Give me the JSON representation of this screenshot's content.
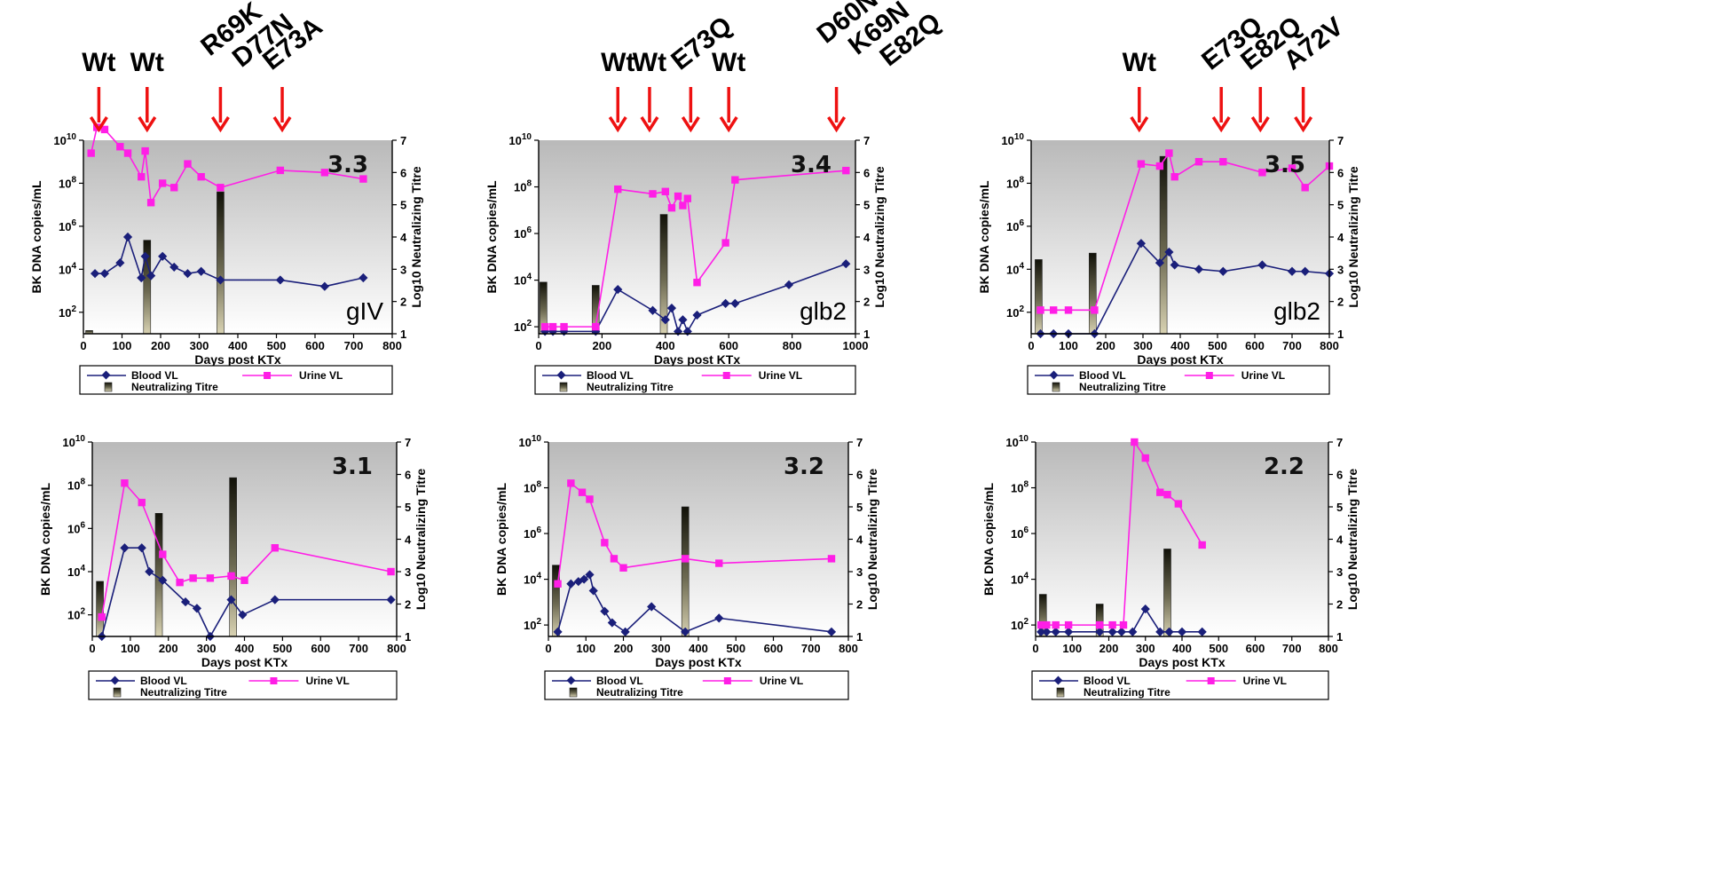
{
  "chart_data": [
    {
      "type": "line",
      "panel_label": "3.3",
      "genotype_label": "gIV",
      "xlabel": "Days post KTx",
      "ylabel": "BK DNA copies/mL",
      "y2label": "Log10 Neutralizing Titre",
      "xlim": [
        0,
        800
      ],
      "x_ticks": [
        0,
        100,
        200,
        300,
        400,
        500,
        600,
        700,
        800
      ],
      "ylim_log10": [
        1,
        10
      ],
      "y_ticks": [
        "10",
        "10",
        "10",
        "10",
        "10"
      ],
      "y_tick_exponents": [
        "2",
        "4",
        "6",
        "8",
        "10"
      ],
      "y2lim": [
        1,
        7
      ],
      "y2_ticks": [
        1,
        2,
        3,
        4,
        5,
        6,
        7
      ],
      "annotations": [
        {
          "day": 40,
          "lines": [
            "Wt"
          ]
        },
        {
          "day": 165,
          "lines": [
            "Wt"
          ]
        },
        {
          "day": 355,
          "lines": [
            "R69K",
            "D77N"
          ]
        },
        {
          "day": 515,
          "lines": [
            "E73A"
          ]
        }
      ],
      "series": [
        {
          "name": "Blood VL",
          "x": [
            30,
            55,
            95,
            115,
            150,
            160,
            175,
            205,
            235,
            270,
            305,
            355,
            510,
            625,
            725
          ],
          "log10_y": [
            3.8,
            3.8,
            4.3,
            5.5,
            3.6,
            4.6,
            3.7,
            4.6,
            4.1,
            3.8,
            3.9,
            3.5,
            3.5,
            3.2,
            3.6
          ]
        },
        {
          "name": "Urine VL",
          "x": [
            20,
            35,
            55,
            95,
            115,
            150,
            160,
            175,
            205,
            235,
            270,
            305,
            355,
            510,
            625,
            725
          ],
          "log10_y": [
            9.4,
            10.6,
            10.5,
            9.7,
            9.4,
            8.3,
            9.5,
            7.1,
            8.0,
            7.8,
            8.9,
            8.3,
            7.8,
            8.6,
            8.5,
            8.2
          ]
        },
        {
          "name": "Neutralizing Titre",
          "type": "bar",
          "x": [
            15,
            165,
            355
          ],
          "log10_titre": [
            1.1,
            3.9,
            5.4
          ]
        }
      ]
    },
    {
      "type": "line",
      "panel_label": "3.4",
      "genotype_label": "glb2",
      "xlabel": "Days post KTx",
      "ylabel": "BK DNA copies/mL",
      "y2label": "Log10 Neutralizing Titre",
      "xlim": [
        0,
        1000
      ],
      "x_ticks": [
        0,
        200,
        400,
        600,
        800,
        1000
      ],
      "ylim_log10": [
        1.7,
        10
      ],
      "y_ticks": [
        "10",
        "10",
        "10",
        "10",
        "10"
      ],
      "y_tick_exponents": [
        "2",
        "4",
        "6",
        "8",
        "10"
      ],
      "y2lim": [
        1,
        7
      ],
      "y2_ticks": [
        1,
        2,
        3,
        4,
        5,
        6,
        7
      ],
      "annotations": [
        {
          "day": 250,
          "lines": [
            "Wt"
          ]
        },
        {
          "day": 350,
          "lines": [
            "Wt"
          ]
        },
        {
          "day": 480,
          "lines": [
            "E73Q"
          ]
        },
        {
          "day": 600,
          "lines": [
            "Wt"
          ]
        },
        {
          "day": 940,
          "lines": [
            "D60N",
            "K69N",
            "E82Q"
          ]
        }
      ],
      "series": [
        {
          "name": "Blood VL",
          "x": [
            20,
            45,
            80,
            180,
            250,
            360,
            400,
            420,
            440,
            455,
            470,
            500,
            590,
            620,
            790,
            970
          ],
          "log10_y": [
            1.8,
            1.8,
            1.8,
            1.8,
            3.6,
            2.7,
            2.3,
            2.8,
            1.8,
            2.3,
            1.8,
            2.5,
            3.0,
            3.0,
            3.8,
            4.7
          ]
        },
        {
          "name": "Urine VL",
          "x": [
            20,
            45,
            80,
            180,
            250,
            360,
            400,
            420,
            440,
            455,
            470,
            500,
            590,
            620,
            970
          ],
          "log10_y": [
            2.0,
            2.0,
            2.0,
            2.0,
            7.9,
            7.7,
            7.8,
            7.1,
            7.6,
            7.2,
            7.5,
            3.9,
            5.6,
            8.3,
            8.7
          ]
        },
        {
          "name": "Neutralizing Titre",
          "type": "bar",
          "x": [
            15,
            180,
            395
          ],
          "log10_titre": [
            2.6,
            2.5,
            4.7
          ]
        }
      ]
    },
    {
      "type": "line",
      "panel_label": "3.5",
      "genotype_label": "glb2",
      "xlabel": "Days post KTx",
      "ylabel": "BK DNA copies/mL",
      "y2label": "Log10 Neutralizing Titre",
      "xlim": [
        0,
        800
      ],
      "x_ticks": [
        0,
        100,
        200,
        300,
        400,
        500,
        600,
        700,
        800
      ],
      "ylim_log10": [
        1,
        10
      ],
      "y_ticks": [
        "10",
        "10",
        "10",
        "10",
        "10"
      ],
      "y_tick_exponents": [
        "2",
        "4",
        "6",
        "8",
        "10"
      ],
      "y2lim": [
        1,
        7
      ],
      "y2_ticks": [
        1,
        2,
        3,
        4,
        5,
        6,
        7
      ],
      "annotations": [
        {
          "day": 290,
          "lines": [
            "Wt"
          ]
        },
        {
          "day": 510,
          "lines": [
            "E73Q"
          ]
        },
        {
          "day": 615,
          "lines": [
            "E82Q"
          ]
        },
        {
          "day": 730,
          "lines": [
            "A72V"
          ]
        }
      ],
      "series": [
        {
          "name": "Blood VL",
          "x": [
            25,
            60,
            100,
            170,
            295,
            345,
            370,
            385,
            450,
            515,
            620,
            700,
            735,
            800
          ],
          "log10_y": [
            1.0,
            1.0,
            1.0,
            1.0,
            5.2,
            4.3,
            4.8,
            4.2,
            4.0,
            3.9,
            4.2,
            3.9,
            3.9,
            3.8
          ]
        },
        {
          "name": "Urine VL",
          "x": [
            25,
            60,
            100,
            170,
            295,
            345,
            370,
            385,
            450,
            515,
            620,
            700,
            735,
            800
          ],
          "log10_y": [
            2.1,
            2.1,
            2.1,
            2.1,
            8.9,
            8.8,
            9.4,
            8.3,
            9.0,
            9.0,
            8.5,
            8.7,
            7.8,
            8.8
          ]
        },
        {
          "name": "Neutralizing Titre",
          "type": "bar",
          "x": [
            20,
            165,
            355
          ],
          "log10_titre": [
            3.3,
            3.5,
            6.5
          ]
        }
      ]
    },
    {
      "type": "line",
      "panel_label": "3.1",
      "genotype_label": "",
      "xlabel": "Days post KTx",
      "ylabel": "BK DNA copies/mL",
      "y2label": "Log10 Neutralizing Titre",
      "xlim": [
        0,
        800
      ],
      "x_ticks": [
        0,
        100,
        200,
        300,
        400,
        500,
        600,
        700,
        800
      ],
      "ylim_log10": [
        1,
        10
      ],
      "y_ticks": [
        "10",
        "10",
        "10",
        "10",
        "10"
      ],
      "y_tick_exponents": [
        "2",
        "4",
        "6",
        "8",
        "10"
      ],
      "y2lim": [
        1,
        7
      ],
      "y2_ticks": [
        1,
        2,
        3,
        4,
        5,
        6,
        7
      ],
      "annotations": [],
      "series": [
        {
          "name": "Blood VL",
          "x": [
            25,
            85,
            130,
            150,
            185,
            245,
            275,
            310,
            365,
            395,
            480,
            785
          ],
          "log10_y": [
            1.0,
            5.1,
            5.1,
            4.0,
            3.6,
            2.6,
            2.3,
            1.0,
            2.7,
            2.0,
            2.7,
            2.7
          ]
        },
        {
          "name": "Urine VL",
          "x": [
            25,
            85,
            130,
            185,
            230,
            265,
            310,
            365,
            400,
            480,
            785
          ],
          "log10_y": [
            1.9,
            8.1,
            7.2,
            4.8,
            3.5,
            3.7,
            3.7,
            3.8,
            3.6,
            5.1,
            4.0
          ]
        },
        {
          "name": "Neutralizing Titre",
          "type": "bar",
          "x": [
            20,
            175,
            370
          ],
          "log10_titre": [
            2.7,
            4.8,
            5.9
          ]
        }
      ]
    },
    {
      "type": "line",
      "panel_label": "3.2",
      "genotype_label": "",
      "xlabel": "Days post KTx",
      "ylabel": "BK DNA copies/mL",
      "y2label": "Log10 Neutralizing Titre",
      "xlim": [
        0,
        800
      ],
      "x_ticks": [
        0,
        100,
        200,
        300,
        400,
        500,
        600,
        700,
        800
      ],
      "ylim_log10": [
        1.5,
        10
      ],
      "y_ticks": [
        "10",
        "10",
        "10",
        "10",
        "10"
      ],
      "y_tick_exponents": [
        "2",
        "4",
        "6",
        "8",
        "10"
      ],
      "y2lim": [
        1,
        7
      ],
      "y2_ticks": [
        1,
        2,
        3,
        4,
        5,
        6,
        7
      ],
      "annotations": [],
      "series": [
        {
          "name": "Blood VL",
          "x": [
            25,
            60,
            80,
            95,
            110,
            120,
            150,
            170,
            205,
            275,
            365,
            455,
            755
          ],
          "log10_y": [
            1.7,
            3.8,
            3.9,
            4.0,
            4.2,
            3.5,
            2.6,
            2.1,
            1.7,
            2.8,
            1.7,
            2.3,
            1.7
          ]
        },
        {
          "name": "Urine VL",
          "x": [
            25,
            60,
            90,
            110,
            150,
            175,
            200,
            365,
            455,
            755
          ],
          "log10_y": [
            3.8,
            8.2,
            7.8,
            7.5,
            5.6,
            4.9,
            4.5,
            4.9,
            4.7,
            4.9
          ]
        },
        {
          "name": "Neutralizing Titre",
          "type": "bar",
          "x": [
            20,
            365
          ],
          "log10_titre": [
            3.2,
            5.0
          ]
        }
      ]
    },
    {
      "type": "line",
      "panel_label": "2.2",
      "genotype_label": "",
      "xlabel": "Days post KTx",
      "ylabel": "BK DNA copies/mL",
      "y2label": "Log10 Neutralizing Titre",
      "xlim": [
        0,
        800
      ],
      "x_ticks": [
        0,
        100,
        200,
        300,
        400,
        500,
        600,
        700,
        800
      ],
      "ylim_log10": [
        1.5,
        10
      ],
      "y_ticks": [
        "10",
        "10",
        "10",
        "10",
        "10"
      ],
      "y_tick_exponents": [
        "2",
        "4",
        "6",
        "8",
        "10"
      ],
      "y2lim": [
        1,
        7
      ],
      "y2_ticks": [
        1,
        2,
        3,
        4,
        5,
        6,
        7
      ],
      "annotations": [],
      "series": [
        {
          "name": "Blood VL",
          "x": [
            15,
            30,
            55,
            90,
            175,
            210,
            235,
            265,
            300,
            340,
            365,
            400,
            455
          ],
          "log10_y": [
            1.7,
            1.7,
            1.7,
            1.7,
            1.7,
            1.7,
            1.7,
            1.7,
            2.7,
            1.7,
            1.7,
            1.7,
            1.7
          ]
        },
        {
          "name": "Urine VL",
          "x": [
            15,
            30,
            55,
            90,
            175,
            210,
            240,
            270,
            300,
            340,
            360,
            390,
            455
          ],
          "log10_y": [
            2.0,
            2.0,
            2.0,
            2.0,
            2.0,
            2.0,
            2.0,
            10.0,
            9.3,
            7.8,
            7.7,
            7.3,
            5.5
          ]
        },
        {
          "name": "Neutralizing Titre",
          "type": "bar",
          "x": [
            20,
            175,
            360
          ],
          "log10_titre": [
            2.3,
            2.0,
            3.7
          ]
        }
      ]
    }
  ],
  "legend": {
    "blood": "Blood VL",
    "urine": "Urine VL",
    "titre": "Neutralizing Titre"
  },
  "colors": {
    "blood": "#1a1f7a",
    "urine": "#ff1ee6",
    "arrow": "#ee1111",
    "bar_dark": "#1a1a10",
    "bar_light": "#c9c3a3",
    "plot_bg_top": "#bcbcbc",
    "plot_bg_bottom": "#ffffff"
  }
}
